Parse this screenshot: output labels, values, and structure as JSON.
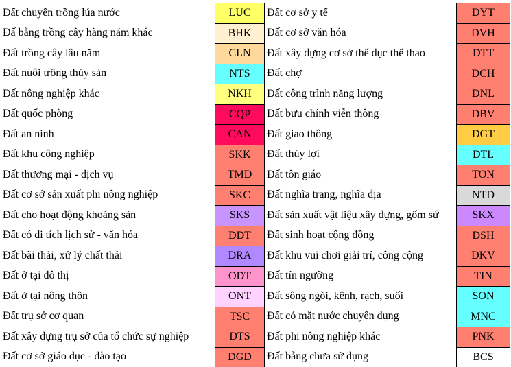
{
  "rows": [
    {
      "left": {
        "name": "Đất chuyên trồng lúa nước",
        "code": "LUC",
        "color": "#ffff66"
      },
      "right": {
        "name": "Đất cơ sở y tế",
        "code": "DYT",
        "color": "#ff7f70"
      }
    },
    {
      "left": {
        "name": "Đấ bằng trồng cây hàng năm khác",
        "code": "BHK",
        "color": "#fff0d2"
      },
      "right": {
        "name": "Đất cơ sở văn hóa",
        "code": "DVH",
        "color": "#ff7f70"
      }
    },
    {
      "left": {
        "name": "Đất trồng cây lâu năm",
        "code": "CLN",
        "color": "#ffd99c"
      },
      "right": {
        "name": "Đất xây dựng cơ sở thể dục thể thao",
        "code": "DTT",
        "color": "#ff7f70"
      }
    },
    {
      "left": {
        "name": "Đất nuôi trồng thủy sản",
        "code": "NTS",
        "color": "#66ffff"
      },
      "right": {
        "name": "Đất chợ",
        "code": "DCH",
        "color": "#ff7f70"
      }
    },
    {
      "left": {
        "name": "Đất nông nghiệp khác",
        "code": "NKH",
        "color": "#ffff80"
      },
      "right": {
        "name": "Đất công trình năng lượng",
        "code": "DNL",
        "color": "#ff7f70"
      }
    },
    {
      "left": {
        "name": "Đất quốc phòng",
        "code": "CQP",
        "color": "#ff0a5c"
      },
      "right": {
        "name": "Đất bưu chính viễn thông",
        "code": "DBV",
        "color": "#ff7f70"
      }
    },
    {
      "left": {
        "name": "Đất an ninh",
        "code": "CAN",
        "color": "#ff0a5c"
      },
      "right": {
        "name": "Đất giao thông",
        "code": "DGT",
        "color": "#ffcc44"
      }
    },
    {
      "left": {
        "name": "Đất khu công nghiệp",
        "code": "SKK",
        "color": "#ff7f70"
      },
      "right": {
        "name": "Đất thủy lợi",
        "code": "DTL",
        "color": "#66ffff"
      }
    },
    {
      "left": {
        "name": "Đất thương mại - dịch vụ",
        "code": "TMD",
        "color": "#ff7f70"
      },
      "right": {
        "name": "Đất tôn giáo",
        "code": "TON",
        "color": "#ff7f70"
      }
    },
    {
      "left": {
        "name": "Đất cơ sở sản xuất phi nông nghiệp",
        "code": "SKC",
        "color": "#ff7f70"
      },
      "right": {
        "name": "Đất nghĩa trang, nghĩa địa",
        "code": "NTD",
        "color": "#d9d9d9"
      }
    },
    {
      "left": {
        "name": "Đất cho hoạt động khoáng sản",
        "code": "SKS",
        "color": "#c894ff"
      },
      "right": {
        "name": "Đất sản xuất vật liệu xây dựng, gốm sứ",
        "code": "SKX",
        "color": "#cc88ff"
      }
    },
    {
      "left": {
        "name": "Đất có di tích lịch sử - văn hóa",
        "code": "DDT",
        "color": "#ff7f70"
      },
      "right": {
        "name": "Đất sinh hoạt cộng đồng",
        "code": "DSH",
        "color": "#ff7f70"
      }
    },
    {
      "left": {
        "name": "Đất bãi thải, xử lý chất thải",
        "code": "DRA",
        "color": "#b088ff"
      },
      "right": {
        "name": "Đất khu vui chơi giải trí, công cộng",
        "code": "DKV",
        "color": "#ff7f70"
      }
    },
    {
      "left": {
        "name": "Đất ở tại đô thị",
        "code": "ODT",
        "color": "#ff94cc"
      },
      "right": {
        "name": "Đất tín ngưỡng",
        "code": "TIN",
        "color": "#ff7f70"
      }
    },
    {
      "left": {
        "name": "Đất ở tại nông thôn",
        "code": "ONT",
        "color": "#ffd2ff"
      },
      "right": {
        "name": "Đất sông ngòi, kênh, rạch, suối",
        "code": "SON",
        "color": "#66ffff"
      }
    },
    {
      "left": {
        "name": "Đất trụ sở cơ quan",
        "code": "TSC",
        "color": "#ff7f70"
      },
      "right": {
        "name": "Đất có mặt nước chuyên dụng",
        "code": "MNC",
        "color": "#66ffff"
      }
    },
    {
      "left": {
        "name": "Đất xây dựng trụ sở của tổ chức sự nghiệp",
        "code": "DTS",
        "color": "#ff7f70"
      },
      "right": {
        "name": "Đất phi nông nghiệp khác",
        "code": "PNK",
        "color": "#ff7f70"
      }
    },
    {
      "left": {
        "name": "Đất cơ sở giáo dục - đào tạo",
        "code": "DGD",
        "color": "#ff7f70"
      },
      "right": {
        "name": "Đất bằng chưa sử dụng",
        "code": "BCS",
        "color": "#ffffff"
      }
    }
  ]
}
